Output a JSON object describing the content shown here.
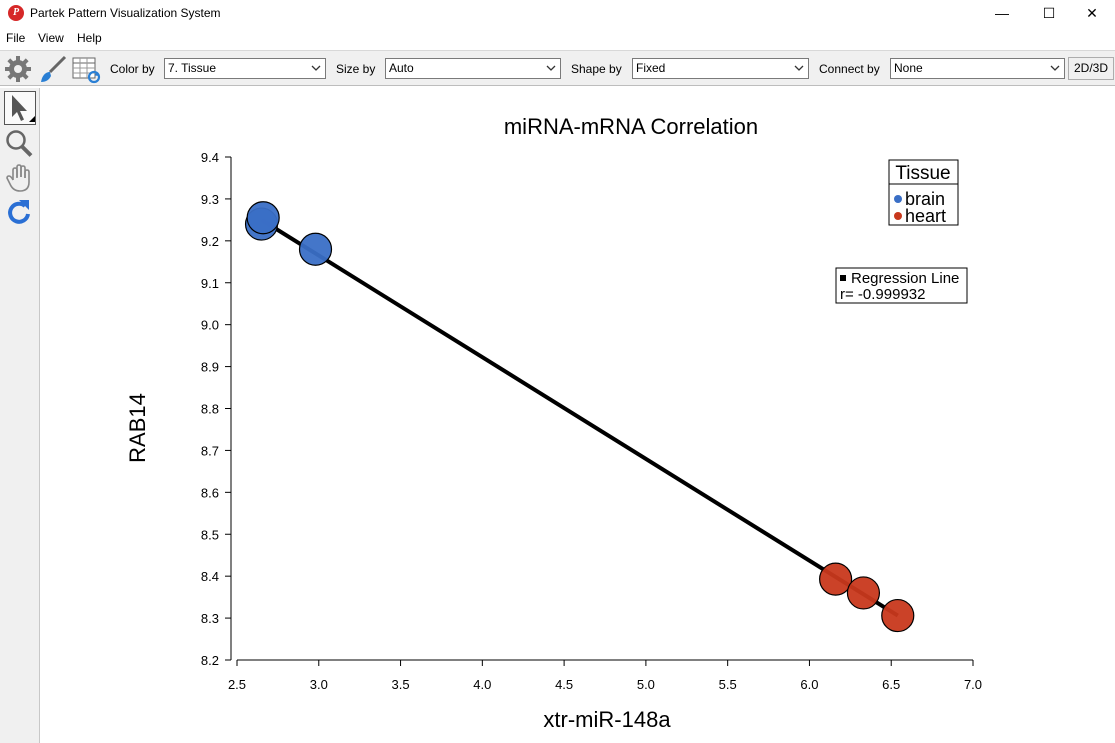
{
  "window": {
    "title": "Partek Pattern Visualization System",
    "app_icon_glyph": "P",
    "controls": {
      "minimize": "—",
      "maximize": "☐",
      "close": "✕"
    }
  },
  "menu": {
    "items": [
      "File",
      "View",
      "Help"
    ]
  },
  "toolbar": {
    "icons": [
      "gear-icon",
      "brush-icon",
      "table-refresh-icon"
    ],
    "color_by": {
      "label": "Color by",
      "value": "7. Tissue"
    },
    "size_by": {
      "label": "Size by",
      "value": "Auto"
    },
    "shape_by": {
      "label": "Shape by",
      "value": "Fixed"
    },
    "connect_by": {
      "label": "Connect by",
      "value": "None"
    },
    "toggle_label": "2D/3D"
  },
  "side_tools": [
    "pointer-icon",
    "zoom-icon",
    "hand-icon",
    "rotate-icon"
  ],
  "colors": {
    "brain": "#3a6fc6",
    "heart": "#c8381c",
    "line": "#000000"
  },
  "chart_data": {
    "type": "scatter",
    "title": "miRNA-mRNA Correlation",
    "xlabel": "xtr-miR-148a",
    "ylabel": "RAB14",
    "xlim": [
      2.5,
      7.0
    ],
    "ylim": [
      8.2,
      9.4
    ],
    "x_ticks": [
      "2.5",
      "3.0",
      "3.5",
      "4.0",
      "4.5",
      "5.0",
      "5.5",
      "6.0",
      "6.5",
      "7.0"
    ],
    "y_ticks": [
      "8.2",
      "8.3",
      "8.4",
      "8.5",
      "8.6",
      "8.7",
      "8.8",
      "8.9",
      "9.0",
      "9.1",
      "9.2",
      "9.3",
      "9.4"
    ],
    "grid": false,
    "series": [
      {
        "name": "brain",
        "color": "#3a6fc6",
        "x": [
          2.65,
          2.66,
          2.98
        ],
        "y": [
          9.24,
          9.255,
          9.18
        ]
      },
      {
        "name": "heart",
        "color": "#c8381c",
        "x": [
          6.16,
          6.33,
          6.54
        ],
        "y": [
          8.393,
          8.36,
          8.306
        ]
      }
    ],
    "regression": {
      "x": [
        2.65,
        6.54
      ],
      "y": [
        9.25,
        8.306
      ]
    },
    "legend": {
      "title": "Tissue",
      "entries": [
        "brain",
        "heart"
      ],
      "placement": "top-right"
    },
    "annotation": {
      "line1": "Regression Line",
      "line2": "r= -0.999932"
    }
  }
}
